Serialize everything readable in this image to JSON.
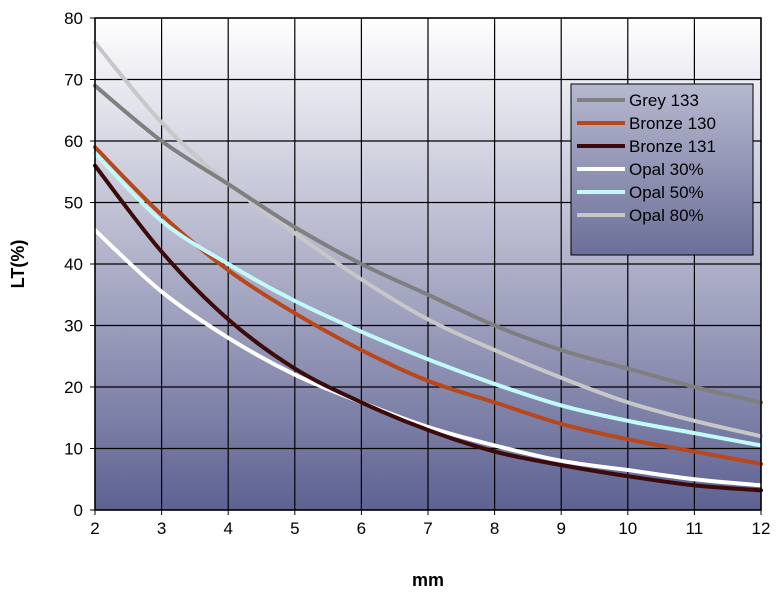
{
  "chart_data": {
    "type": "line",
    "title": "",
    "xlabel": "mm",
    "ylabel": "LT(%)",
    "xlim": [
      2,
      12
    ],
    "ylim": [
      0,
      80
    ],
    "x_ticks": [
      2,
      3,
      4,
      5,
      6,
      7,
      8,
      9,
      10,
      11,
      12
    ],
    "y_ticks": [
      0,
      10,
      20,
      30,
      40,
      50,
      60,
      70,
      80
    ],
    "grid": true,
    "legend_position": "top-right",
    "x": [
      2,
      3,
      4,
      5,
      6,
      7,
      8,
      9,
      10,
      11,
      12
    ],
    "series": [
      {
        "name": "Grey 133",
        "color": "#7f7f7f",
        "values": [
          69,
          60,
          53,
          46,
          40,
          35,
          30,
          26,
          23,
          20,
          17.5
        ]
      },
      {
        "name": "Bronze 130",
        "color": "#b8471c",
        "values": [
          59,
          48,
          39,
          32,
          26,
          21,
          17.5,
          14,
          11.5,
          9.5,
          7.5
        ]
      },
      {
        "name": "Bronze 131",
        "color": "#3b0a0a",
        "values": [
          56,
          42,
          31,
          23,
          17.5,
          13,
          9.5,
          7.3,
          5.5,
          4,
          3.2
        ]
      },
      {
        "name": "Opal 30%",
        "color": "#ffffff",
        "values": [
          45.5,
          35.5,
          28,
          22,
          17.5,
          13.5,
          10.5,
          8,
          6.5,
          5,
          4
        ]
      },
      {
        "name": "Opal 50%",
        "color": "#c2fafa",
        "values": [
          58,
          47,
          40,
          34,
          29,
          24.5,
          20.5,
          17,
          14.5,
          12.5,
          10.5
        ]
      },
      {
        "name": "Opal 80%",
        "color": "#c7c7c7",
        "values": [
          76,
          63,
          53,
          45,
          37.5,
          31,
          26,
          21.5,
          17.5,
          14.5,
          12
        ]
      }
    ]
  },
  "colors": {
    "plot_top": "#ffffff",
    "plot_bottom": "#5e6292",
    "legend_top": "#b7b9d0",
    "legend_bottom": "#6c6f98",
    "grid": "#000000"
  }
}
